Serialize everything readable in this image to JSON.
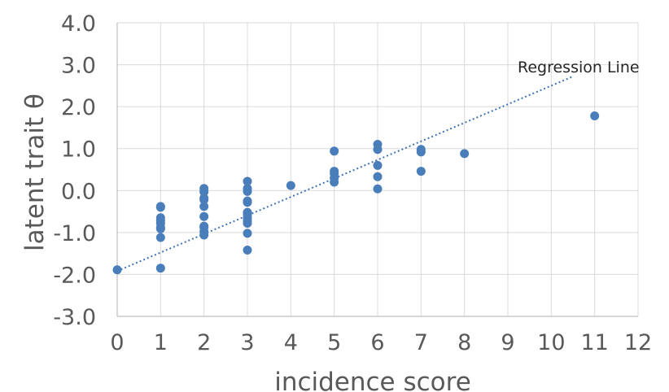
{
  "chart_data": {
    "type": "scatter",
    "xlabel": "incidence score",
    "ylabel": "latent trait θ",
    "xlim": [
      0,
      12
    ],
    "ylim": [
      -3.0,
      4.0
    ],
    "x_ticks": [
      0,
      1,
      2,
      3,
      4,
      5,
      6,
      7,
      8,
      9,
      10,
      11,
      12
    ],
    "y_ticks": [
      -3.0,
      -2.0,
      -1.0,
      0.0,
      1.0,
      2.0,
      3.0,
      4.0
    ],
    "x_tick_labels": [
      "0",
      "1",
      "2",
      "3",
      "4",
      "5",
      "6",
      "7",
      "8",
      "9",
      "10",
      "11",
      "12"
    ],
    "y_tick_labels": [
      "-3.0",
      "-2.0",
      "-1.0",
      "0.0",
      "1.0",
      "2.0",
      "3.0",
      "4.0"
    ],
    "grid": true,
    "points_color": "#4a7ebb",
    "regression_color": "#3f74b3",
    "regression_label": "Regression Line",
    "regression": {
      "x": [
        0,
        10.5
      ],
      "y": [
        -1.92,
        2.72
      ]
    },
    "points": [
      {
        "x": 0,
        "y": -1.89
      },
      {
        "x": 1,
        "y": -0.38
      },
      {
        "x": 1,
        "y": -0.4
      },
      {
        "x": 1,
        "y": -0.65
      },
      {
        "x": 1,
        "y": -0.72
      },
      {
        "x": 1,
        "y": -0.78
      },
      {
        "x": 1,
        "y": -0.88
      },
      {
        "x": 1,
        "y": -0.91
      },
      {
        "x": 1,
        "y": -1.12
      },
      {
        "x": 1,
        "y": -1.85
      },
      {
        "x": 2,
        "y": 0.05
      },
      {
        "x": 2,
        "y": -0.03
      },
      {
        "x": 2,
        "y": -0.18
      },
      {
        "x": 2,
        "y": -0.22
      },
      {
        "x": 2,
        "y": -0.38
      },
      {
        "x": 2,
        "y": -0.62
      },
      {
        "x": 2,
        "y": -0.85
      },
      {
        "x": 2,
        "y": -0.88
      },
      {
        "x": 2,
        "y": -0.98
      },
      {
        "x": 2,
        "y": -1.06
      },
      {
        "x": 3,
        "y": 0.22
      },
      {
        "x": 3,
        "y": 0.05
      },
      {
        "x": 3,
        "y": -0.02
      },
      {
        "x": 3,
        "y": -0.25
      },
      {
        "x": 3,
        "y": -0.28
      },
      {
        "x": 3,
        "y": -0.52
      },
      {
        "x": 3,
        "y": -0.58
      },
      {
        "x": 3,
        "y": -0.65
      },
      {
        "x": 3,
        "y": -0.72
      },
      {
        "x": 3,
        "y": -0.78
      },
      {
        "x": 3,
        "y": -1.02
      },
      {
        "x": 3,
        "y": -1.42
      },
      {
        "x": 4,
        "y": 0.12
      },
      {
        "x": 5,
        "y": 0.94
      },
      {
        "x": 5,
        "y": 0.46
      },
      {
        "x": 5,
        "y": 0.4
      },
      {
        "x": 5,
        "y": 0.3
      },
      {
        "x": 5,
        "y": 0.2
      },
      {
        "x": 6,
        "y": 1.1
      },
      {
        "x": 6,
        "y": 0.98
      },
      {
        "x": 6,
        "y": 0.6
      },
      {
        "x": 6,
        "y": 0.33
      },
      {
        "x": 6,
        "y": 0.04
      },
      {
        "x": 7,
        "y": 0.98
      },
      {
        "x": 7,
        "y": 0.92
      },
      {
        "x": 7,
        "y": 0.46
      },
      {
        "x": 8,
        "y": 0.88
      },
      {
        "x": 11,
        "y": 1.78
      }
    ]
  }
}
